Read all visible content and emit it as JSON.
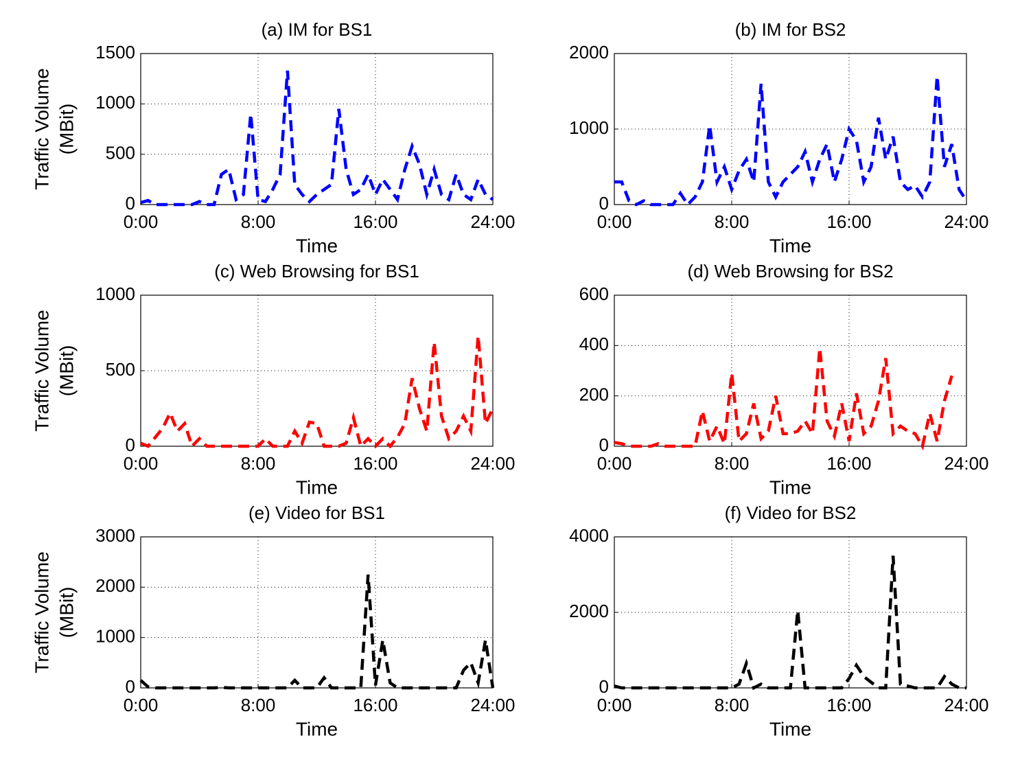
{
  "chart_data": [
    {
      "type": "line",
      "title": "(a) IM for BS1",
      "xlabel": "Time",
      "ylabel": [
        "Traffic Volume",
        "(MBit)"
      ],
      "color": "#0000ff",
      "grid": true,
      "xlim": [
        0,
        24
      ],
      "xticks": [
        {
          "value": 0,
          "label": "0:00"
        },
        {
          "value": 8,
          "label": "8:00"
        },
        {
          "value": 16,
          "label": "16:00"
        },
        {
          "value": 24,
          "label": "24:00"
        }
      ],
      "ylim": [
        0,
        1500
      ],
      "yticks": [
        0,
        500,
        1000,
        1500
      ],
      "x": [
        0,
        0.5,
        1,
        1.5,
        2,
        2.5,
        3,
        3.5,
        4,
        4.5,
        5,
        5.5,
        6,
        6.5,
        7,
        7.5,
        8,
        8.5,
        9,
        9.5,
        10,
        10.5,
        11,
        11.5,
        12,
        12.5,
        13,
        13.5,
        14,
        14.5,
        15,
        15.5,
        16,
        16.5,
        17,
        17.5,
        18,
        18.5,
        19,
        19.5,
        20,
        20.5,
        21,
        21.5,
        22,
        22.5,
        23,
        23.5,
        24
      ],
      "values": [
        20,
        40,
        0,
        0,
        0,
        0,
        0,
        0,
        30,
        0,
        0,
        300,
        350,
        50,
        100,
        900,
        50,
        30,
        150,
        300,
        1330,
        200,
        100,
        30,
        100,
        150,
        200,
        950,
        350,
        100,
        150,
        300,
        100,
        250,
        150,
        50,
        350,
        580,
        400,
        100,
        350,
        100,
        50,
        300,
        100,
        50,
        250,
        100,
        50
      ]
    },
    {
      "type": "line",
      "title": "(b) IM for BS2",
      "xlabel": "Time",
      "color": "#0000ff",
      "grid": true,
      "xlim": [
        0,
        24
      ],
      "xticks": [
        {
          "value": 0,
          "label": "0:00"
        },
        {
          "value": 8,
          "label": "8:00"
        },
        {
          "value": 16,
          "label": "16:00"
        },
        {
          "value": 24,
          "label": "24:00"
        }
      ],
      "ylim": [
        0,
        2000
      ],
      "yticks": [
        0,
        1000,
        2000
      ],
      "x": [
        0,
        0.5,
        1,
        1.5,
        2,
        2.5,
        3,
        3.5,
        4,
        4.5,
        5,
        5.5,
        6,
        6.5,
        7,
        7.5,
        8,
        8.5,
        9,
        9.5,
        10,
        10.5,
        11,
        11.5,
        12,
        12.5,
        13,
        13.5,
        14,
        14.5,
        15,
        15.5,
        16,
        16.5,
        17,
        17.5,
        18,
        18.5,
        19,
        19.5,
        20,
        20.5,
        21,
        21.5,
        22,
        22.5,
        23,
        23.5,
        24
      ],
      "values": [
        300,
        300,
        50,
        0,
        50,
        0,
        0,
        0,
        0,
        150,
        0,
        100,
        300,
        1050,
        300,
        500,
        200,
        450,
        600,
        300,
        1600,
        300,
        100,
        300,
        400,
        500,
        700,
        300,
        600,
        800,
        300,
        600,
        1000,
        850,
        300,
        500,
        1150,
        600,
        900,
        300,
        200,
        250,
        100,
        300,
        1700,
        500,
        800,
        200,
        50
      ]
    },
    {
      "type": "line",
      "title": "(c) Web Browsing for BS1",
      "xlabel": "Time",
      "ylabel": [
        "Traffic Volume",
        "(MBit)"
      ],
      "color": "#ff0000",
      "grid": true,
      "xlim": [
        0,
        24
      ],
      "xticks": [
        {
          "value": 0,
          "label": "0:00"
        },
        {
          "value": 8,
          "label": "8:00"
        },
        {
          "value": 16,
          "label": "16:00"
        },
        {
          "value": 24,
          "label": "24:00"
        }
      ],
      "ylim": [
        0,
        1000
      ],
      "yticks": [
        0,
        500,
        1000
      ],
      "x": [
        0,
        0.5,
        1,
        1.5,
        2,
        2.5,
        3,
        3.5,
        4,
        4.5,
        5,
        5.5,
        6,
        6.5,
        7,
        7.5,
        8,
        8.5,
        9,
        9.5,
        10,
        10.5,
        11,
        11.5,
        12,
        12.5,
        13,
        13.5,
        14,
        14.5,
        15,
        15.5,
        16,
        16.5,
        17,
        17.5,
        18,
        18.5,
        19,
        19.5,
        20,
        20.5,
        21,
        21.5,
        22,
        22.5,
        23,
        23.5,
        24
      ],
      "values": [
        20,
        0,
        60,
        120,
        220,
        100,
        150,
        0,
        50,
        0,
        0,
        0,
        0,
        0,
        0,
        0,
        0,
        50,
        0,
        0,
        0,
        100,
        20,
        160,
        150,
        0,
        0,
        0,
        20,
        190,
        0,
        50,
        0,
        50,
        0,
        60,
        150,
        450,
        250,
        100,
        690,
        200,
        50,
        100,
        200,
        100,
        730,
        150,
        250
      ]
    },
    {
      "type": "line",
      "title": "(d) Web Browsing for BS2",
      "xlabel": "Time",
      "color": "#ff0000",
      "grid": true,
      "xlim": [
        0,
        24
      ],
      "xticks": [
        {
          "value": 0,
          "label": "0:00"
        },
        {
          "value": 8,
          "label": "8:00"
        },
        {
          "value": 16,
          "label": "16:00"
        },
        {
          "value": 24,
          "label": "24:00"
        }
      ],
      "ylim": [
        0,
        600
      ],
      "yticks": [
        0,
        200,
        400,
        600
      ],
      "x": [
        0,
        0.5,
        1,
        1.5,
        2,
        2.5,
        3,
        3.5,
        4,
        4.5,
        5,
        5.5,
        6,
        6.5,
        7,
        7.5,
        8,
        8.5,
        9,
        9.5,
        10,
        10.5,
        11,
        11.5,
        12,
        12.5,
        13,
        13.5,
        14,
        14.5,
        15,
        15.5,
        16,
        16.5,
        17,
        17.5,
        18,
        18.5,
        19,
        19.5,
        20,
        20.5,
        21,
        21.5,
        22,
        22.5,
        23
      ],
      "values": [
        15,
        10,
        0,
        0,
        0,
        0,
        10,
        0,
        0,
        0,
        0,
        0,
        140,
        20,
        80,
        10,
        290,
        20,
        50,
        170,
        30,
        60,
        200,
        50,
        50,
        60,
        100,
        50,
        390,
        100,
        40,
        170,
        20,
        210,
        50,
        80,
        180,
        350,
        50,
        80,
        60,
        50,
        0,
        130,
        20,
        180,
        280
      ]
    },
    {
      "type": "line",
      "title": "(e) Video for BS1",
      "xlabel": "Time",
      "ylabel": [
        "Traffic Volume",
        "(MBit)"
      ],
      "color": "#000000",
      "grid": true,
      "xlim": [
        0,
        24
      ],
      "xticks": [
        {
          "value": 0,
          "label": "0:00"
        },
        {
          "value": 8,
          "label": "8:00"
        },
        {
          "value": 16,
          "label": "16:00"
        },
        {
          "value": 24,
          "label": "24:00"
        }
      ],
      "ylim": [
        0,
        3000
      ],
      "yticks": [
        0,
        1000,
        2000,
        3000
      ],
      "x": [
        0,
        0.5,
        1,
        1.5,
        2,
        2.5,
        3,
        3.5,
        4,
        4.5,
        5,
        5.5,
        6,
        6.5,
        7,
        7.5,
        8,
        8.5,
        9,
        9.5,
        10,
        10.5,
        11,
        11.5,
        12,
        12.5,
        13,
        13.5,
        14,
        14.5,
        15,
        15.5,
        16,
        16.5,
        17,
        17.5,
        18,
        18.5,
        19,
        19.5,
        20,
        20.5,
        21,
        21.5,
        22,
        22.5,
        23,
        23.5,
        24
      ],
      "values": [
        150,
        20,
        0,
        0,
        0,
        0,
        0,
        0,
        0,
        0,
        0,
        10,
        0,
        0,
        0,
        0,
        0,
        0,
        0,
        0,
        0,
        150,
        0,
        0,
        0,
        200,
        0,
        0,
        0,
        0,
        0,
        2250,
        50,
        950,
        100,
        0,
        0,
        0,
        0,
        0,
        0,
        0,
        0,
        0,
        350,
        500,
        100,
        950,
        0
      ]
    },
    {
      "type": "line",
      "title": "(f) Video for BS2",
      "xlabel": "Time",
      "color": "#000000",
      "grid": true,
      "xlim": [
        0,
        24
      ],
      "xticks": [
        {
          "value": 0,
          "label": "0:00"
        },
        {
          "value": 8,
          "label": "8:00"
        },
        {
          "value": 16,
          "label": "16:00"
        },
        {
          "value": 24,
          "label": "24:00"
        }
      ],
      "ylim": [
        0,
        4000
      ],
      "yticks": [
        0,
        2000,
        4000
      ],
      "x": [
        0,
        0.5,
        1,
        1.5,
        2,
        2.5,
        3,
        3.5,
        4,
        4.5,
        5,
        5.5,
        6,
        6.5,
        7,
        7.5,
        8,
        8.5,
        9,
        9.5,
        10,
        10.5,
        11,
        11.5,
        12,
        12.5,
        13,
        13.5,
        14,
        14.5,
        15,
        15.5,
        16,
        16.5,
        17,
        17.5,
        18,
        18.5,
        19,
        19.5,
        20,
        20.5,
        21,
        21.5,
        22,
        22.5,
        23,
        23.5,
        24
      ],
      "values": [
        50,
        0,
        0,
        0,
        0,
        0,
        0,
        0,
        0,
        0,
        0,
        0,
        0,
        0,
        0,
        0,
        0,
        100,
        650,
        0,
        100,
        0,
        0,
        0,
        0,
        2050,
        0,
        0,
        0,
        0,
        0,
        0,
        250,
        600,
        300,
        150,
        0,
        0,
        3500,
        100,
        50,
        0,
        0,
        0,
        0,
        300,
        100,
        0,
        0
      ]
    }
  ]
}
